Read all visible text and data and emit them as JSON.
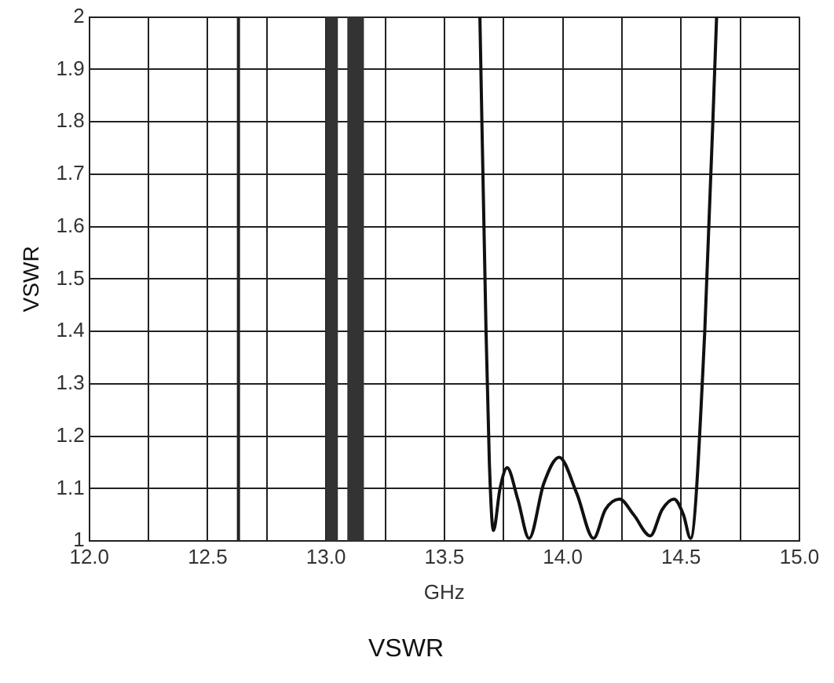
{
  "chart_data": {
    "type": "line",
    "title": "VSWR",
    "xlabel": "GHz",
    "ylabel": "VSWR",
    "x": [
      13.65,
      13.676,
      13.69,
      13.707,
      13.735,
      13.765,
      13.81,
      13.858,
      13.92,
      13.985,
      14.06,
      14.13,
      14.18,
      14.24,
      14.3,
      14.37,
      14.42,
      14.47,
      14.51,
      14.54,
      14.6,
      14.65
    ],
    "values": [
      2,
      1.4,
      1.15,
      1.02,
      1.1,
      1.14,
      1.08,
      1.005,
      1.11,
      1.16,
      1.09,
      1.005,
      1.06,
      1.08,
      1.05,
      1.01,
      1.06,
      1.08,
      1.05,
      1.005,
      1.4,
      2
    ],
    "color": "#111111",
    "xlim": [
      12,
      15
    ],
    "ylim": [
      1,
      2
    ],
    "xticks": [
      {
        "value": 12,
        "label": "12.0"
      },
      {
        "value": 12.25,
        "label": null
      },
      {
        "value": 12.5,
        "label": "12.5"
      },
      {
        "value": 12.75,
        "label": null
      },
      {
        "value": 13,
        "label": "13.0"
      },
      {
        "value": 13.25,
        "label": null
      },
      {
        "value": 13.5,
        "label": "13.5"
      },
      {
        "value": 13.75,
        "label": null
      },
      {
        "value": 14,
        "label": "14.0"
      },
      {
        "value": 14.25,
        "label": null
      },
      {
        "value": 14.5,
        "label": "14.5"
      },
      {
        "value": 14.75,
        "label": null
      },
      {
        "value": 15,
        "label": "15.0"
      }
    ],
    "yticks": [
      1,
      1.1,
      1.2,
      1.3,
      1.4,
      1.5,
      1.6,
      1.7,
      1.8,
      1.9,
      2
    ],
    "grid": true,
    "legend": false,
    "marker": "none",
    "line_style": "solid",
    "ref_lines": [
      {
        "axis": "x",
        "value": 12.63,
        "color": "#222222"
      }
    ],
    "bands": [
      {
        "axis": "x",
        "from": 13.0,
        "to": 13.05,
        "color": "#333333"
      },
      {
        "axis": "x",
        "from": 13.09,
        "to": 13.16,
        "color": "#333333"
      }
    ]
  }
}
